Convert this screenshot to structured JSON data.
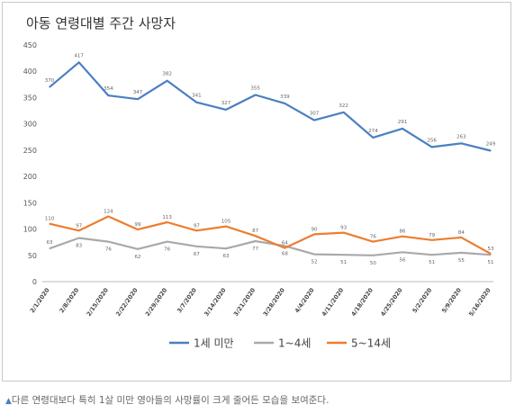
{
  "chart_data": {
    "type": "line",
    "title": "아동 연령대별 주간 사망자",
    "xlabel": "",
    "ylabel": "",
    "ylim": [
      0,
      450
    ],
    "yticks": [
      0,
      50,
      100,
      150,
      200,
      250,
      300,
      350,
      400,
      450
    ],
    "grid": false,
    "legend": "bottom",
    "categories": [
      "2/1/2020",
      "2/8/2020",
      "2/15/2020",
      "2/22/2020",
      "2/29/2020",
      "3/7/2020",
      "3/14/2020",
      "3/21/2020",
      "3/28/2020",
      "4/4/2020",
      "4/11/2020",
      "4/18/2020",
      "4/25/2020",
      "5/2/2020",
      "5/9/2020",
      "5/16/2020"
    ],
    "series": [
      {
        "name": "1세 미만",
        "color": "#4a7fc1",
        "values": [
          370,
          417,
          354,
          347,
          382,
          341,
          327,
          355,
          339,
          307,
          322,
          274,
          291,
          256,
          263,
          249
        ]
      },
      {
        "name": "1~4세",
        "color": "#a9a9a9",
        "values": [
          63,
          83,
          76,
          62,
          76,
          67,
          63,
          77,
          68,
          52,
          51,
          50,
          56,
          51,
          55,
          51
        ]
      },
      {
        "name": "5~14세",
        "color": "#ed7d31",
        "values": [
          110,
          97,
          124,
          99,
          113,
          97,
          105,
          87,
          64,
          90,
          93,
          76,
          86,
          79,
          84,
          53
        ]
      }
    ]
  },
  "caption": {
    "marker": "▲",
    "text": "다른 연령대보다 특히 1살 미만 영아들의 사망률이 크게 줄어든 모습을 보여준다."
  }
}
